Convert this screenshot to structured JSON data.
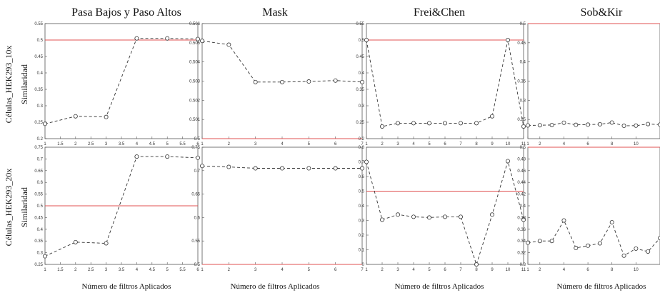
{
  "figure": {
    "column_titles": [
      "Pasa Bajos y Paso Altos",
      "Mask",
      "Frei&Chen",
      "Sob&Kir"
    ],
    "row_labels": [
      {
        "group": "Células_HEK293_10x",
        "measure": "Similaridad"
      },
      {
        "group": "Células_HEK293_20x",
        "measure": "Similaridad"
      }
    ],
    "xlabel": "Número de filtros Aplicados",
    "colors": {
      "series": "#333333",
      "reference": "#e05050",
      "axes": "#555555",
      "background": "#ffffff"
    }
  },
  "chart_data": [
    {
      "id": "r1c1",
      "type": "line",
      "title": "Pasa Bajos y Paso Altos",
      "ylabel": "Similaridad",
      "xlabel": "",
      "x": [
        1,
        2,
        3,
        4,
        5,
        6
      ],
      "values": [
        0.245,
        0.268,
        0.266,
        0.505,
        0.505,
        0.503
      ],
      "reference_line": 0.5,
      "xlim": [
        1,
        6
      ],
      "ylim": [
        0.2,
        0.55
      ],
      "xticks": [
        "1",
        "1.5",
        "2",
        "2.5",
        "3",
        "3.5",
        "4",
        "4.5",
        "5",
        "5.5",
        "6"
      ],
      "yticks": [
        "0.2",
        "0.25",
        "0.3",
        "0.35",
        "0.4",
        "0.45",
        "0.5",
        "0.55"
      ]
    },
    {
      "id": "r1c2",
      "type": "line",
      "title": "Mask",
      "ylabel": "",
      "xlabel": "",
      "x": [
        1,
        2,
        3,
        4,
        5,
        6,
        7
      ],
      "values": [
        0.5051,
        0.5049,
        0.50295,
        0.50295,
        0.50298,
        0.50303,
        0.50295
      ],
      "reference_line": 0.5,
      "xlim": [
        1,
        7
      ],
      "ylim": [
        0.5,
        0.506
      ],
      "xticks": [
        "1",
        "2",
        "3",
        "4",
        "5",
        "6",
        "7"
      ],
      "yticks": [
        "0.5",
        "0.501",
        "0.502",
        "0.503",
        "0.504",
        "0.505",
        "0.506"
      ]
    },
    {
      "id": "r1c3",
      "type": "line",
      "title": "Frei&Chen",
      "ylabel": "",
      "xlabel": "",
      "x": [
        1,
        2,
        3,
        4,
        5,
        6,
        7,
        8,
        9,
        10,
        11
      ],
      "values": [
        0.5,
        0.237,
        0.247,
        0.247,
        0.247,
        0.247,
        0.247,
        0.247,
        0.268,
        0.5,
        0.237
      ],
      "reference_line": 0.5,
      "xlim": [
        1,
        11
      ],
      "ylim": [
        0.2,
        0.55
      ],
      "xticks": [
        "1",
        "2",
        "3",
        "4",
        "5",
        "6",
        "7",
        "8",
        "9",
        "10",
        "11"
      ],
      "yticks": [
        "0.2",
        "0.25",
        "0.3",
        "0.35",
        "0.4",
        "0.45",
        "0.5",
        "0.55"
      ]
    },
    {
      "id": "r1c4",
      "type": "line",
      "title": "Sob&Kir",
      "ylabel": "",
      "xlabel": "",
      "x": [
        1,
        2,
        3,
        4,
        5,
        6,
        7,
        8,
        9,
        10,
        11,
        12
      ],
      "values": [
        0.2345,
        0.235,
        0.2355,
        0.2415,
        0.236,
        0.2365,
        0.2375,
        0.242,
        0.2335,
        0.234,
        0.238,
        0.2365
      ],
      "reference_line": 0.5,
      "xlim": [
        1,
        12
      ],
      "ylim": [
        0.2,
        0.5
      ],
      "xticks": [
        "1",
        "2",
        "4",
        "6",
        "8",
        "10"
      ],
      "yticks": [
        "0.25",
        "0.3",
        "0.35",
        "0.4",
        "0.45",
        "0.5"
      ]
    },
    {
      "id": "r2c1",
      "type": "line",
      "title": "",
      "ylabel": "Similaridad",
      "xlabel": "Número de filtros Aplicados",
      "x": [
        1,
        2,
        3,
        4,
        5,
        6
      ],
      "values": [
        0.285,
        0.345,
        0.34,
        0.71,
        0.71,
        0.705
      ],
      "reference_line": 0.5,
      "xlim": [
        1,
        6
      ],
      "ylim": [
        0.25,
        0.75
      ],
      "xticks": [
        "1",
        "1.5",
        "2",
        "2.5",
        "3",
        "3.5",
        "4",
        "4.5",
        "5",
        "5.5",
        "6"
      ],
      "yticks": [
        "0.25",
        "0.3",
        "0.35",
        "0.4",
        "0.45",
        "0.5",
        "0.55",
        "0.6",
        "0.65",
        "0.7",
        "0.75"
      ]
    },
    {
      "id": "r2c2",
      "type": "line",
      "title": "",
      "ylabel": "",
      "xlabel": "Número de filtros Aplicados",
      "x": [
        1,
        2,
        3,
        4,
        5,
        6,
        7
      ],
      "values": [
        0.71,
        0.708,
        0.705,
        0.705,
        0.705,
        0.705,
        0.705
      ],
      "reference_line": 0.5,
      "xlim": [
        1,
        7
      ],
      "ylim": [
        0.5,
        0.75
      ],
      "xticks": [
        "1",
        "2",
        "3",
        "4",
        "5",
        "6",
        "7"
      ],
      "yticks": [
        "0.5",
        "0.55",
        "0.6",
        "0.65",
        "0.7",
        "0.75"
      ]
    },
    {
      "id": "r2c3",
      "type": "line",
      "title": "",
      "ylabel": "",
      "xlabel": "Número de filtros Aplicados",
      "x": [
        1,
        2,
        3,
        4,
        5,
        6,
        7,
        8,
        9,
        10,
        11
      ],
      "values": [
        0.7,
        0.305,
        0.34,
        0.325,
        0.32,
        0.325,
        0.325,
        0.0,
        0.34,
        0.705,
        0.305
      ],
      "reference_line": 0.5,
      "xlim": [
        1,
        11
      ],
      "ylim": [
        0,
        0.8
      ],
      "xticks": [
        "1",
        "2",
        "3",
        "4",
        "5",
        "6",
        "7",
        "8",
        "9",
        "10",
        "11"
      ],
      "yticks": [
        "0",
        "0.1",
        "0.2",
        "0.3",
        "0.4",
        "0.5",
        "0.6",
        "0.7",
        "0.8"
      ]
    },
    {
      "id": "r2c4",
      "type": "line",
      "title": "",
      "ylabel": "",
      "xlabel": "Número de filtros Aplicados",
      "x": [
        1,
        2,
        3,
        4,
        5,
        6,
        7,
        8,
        9,
        10,
        11,
        12
      ],
      "values": [
        0.337,
        0.34,
        0.34,
        0.375,
        0.328,
        0.332,
        0.336,
        0.372,
        0.315,
        0.327,
        0.322,
        0.345
      ],
      "reference_line": 0.5,
      "xlim": [
        1,
        12
      ],
      "ylim": [
        0.3,
        0.5
      ],
      "xticks": [
        "1",
        "2",
        "4",
        "6",
        "8",
        "10"
      ],
      "yticks": [
        "0.3",
        "0.32",
        "0.34",
        "0.36",
        "0.38",
        "0.4",
        "0.42",
        "0.44",
        "0.46",
        "0.48",
        "0.5"
      ]
    }
  ]
}
